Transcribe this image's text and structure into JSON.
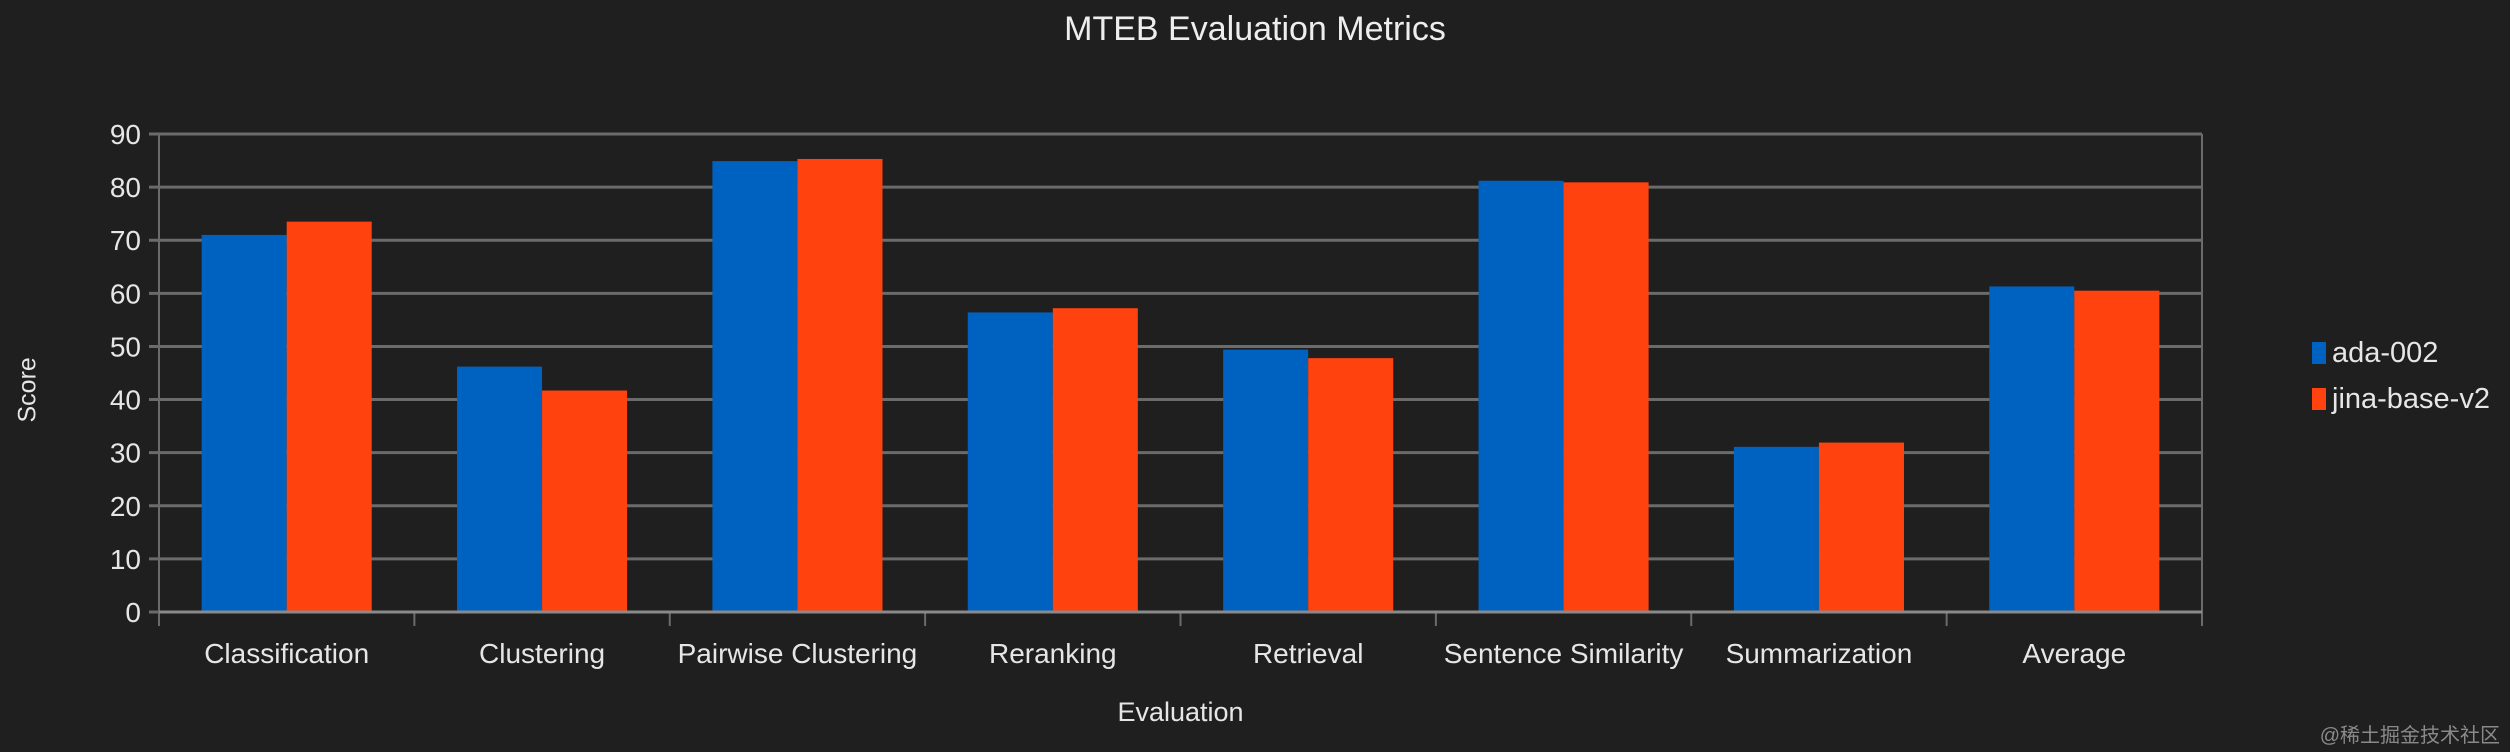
{
  "chart_data": {
    "type": "bar",
    "title": "MTEB Evaluation Metrics",
    "xlabel": "Evaluation",
    "ylabel": "Score",
    "ylim": [
      0,
      90
    ],
    "yticks": [
      0,
      10,
      20,
      30,
      40,
      50,
      60,
      70,
      80,
      90
    ],
    "grid": true,
    "legend_position": "right",
    "categories": [
      "Classification",
      "Clustering",
      "Pairwise Clustering",
      "Reranking",
      "Retrieval",
      "Sentence Similarity",
      "Summarization",
      "Average"
    ],
    "series": [
      {
        "name": "ada-002",
        "color": "#0062c0",
        "values": [
          71.0,
          46.2,
          84.9,
          56.4,
          49.4,
          81.2,
          31.1,
          61.3
        ]
      },
      {
        "name": "jina-base-v2",
        "color": "#ff420e",
        "values": [
          73.5,
          41.7,
          85.3,
          57.2,
          47.8,
          80.9,
          31.9,
          60.5
        ]
      }
    ]
  },
  "watermark": "@稀土掘金技术社区"
}
